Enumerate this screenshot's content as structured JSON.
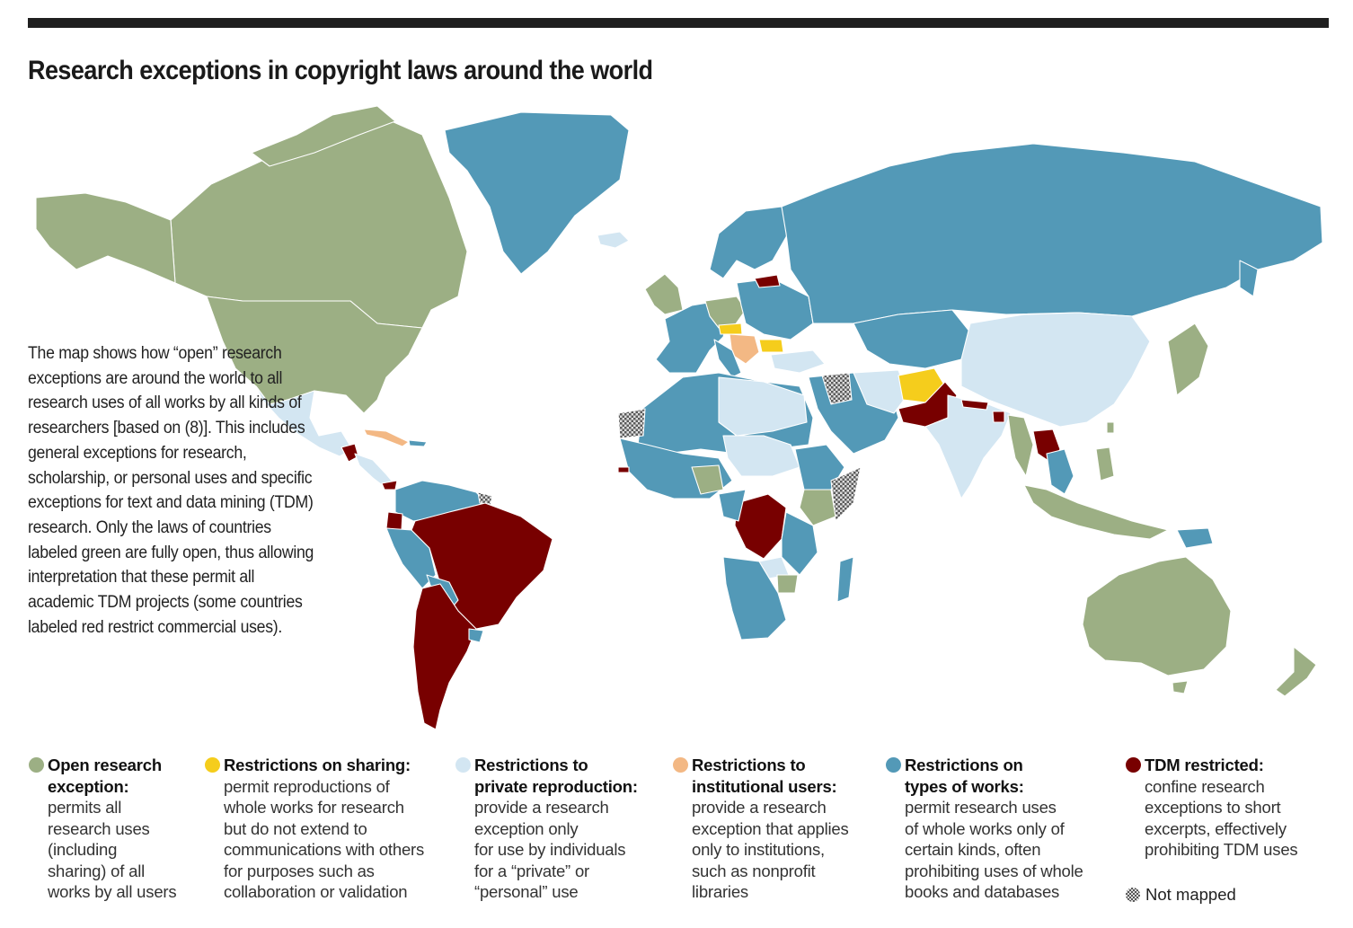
{
  "title": "Research exceptions in copyright laws around the world",
  "intro": "The map shows how “open” research exceptions are around the world to all research uses of all works by all kinds of researchers [based on (8)]. This includes general exceptions for research, scholarship, or personal uses and specific exceptions for text and data mining (TDM) research. Only the laws of countries labeled green are fully open, thus allowing interpretation that these permit all academic TDM projects (some countries labeled red restrict commercial uses).",
  "colors": {
    "open": "#9caf84",
    "sharing": "#f5cd1c",
    "private": "#d3e6f2",
    "institutional": "#f3b884",
    "types": "#5399b7",
    "tdm": "#780000",
    "notmapped": "#888888"
  },
  "legend": [
    {
      "key": "open",
      "heading": "Open research\nexception:",
      "desc": "permits all\nresearch uses\n(including\nsharing) of all\nworks by all users"
    },
    {
      "key": "sharing",
      "heading": "Restrictions on sharing:",
      "desc": "permit reproductions of\nwhole works for research\nbut do not extend to\ncommunications with others\nfor purposes such as\ncollaboration or validation"
    },
    {
      "key": "private",
      "heading": "Restrictions to\nprivate reproduction:",
      "desc": "provide a research\nexception only\nfor use by individuals\nfor a “private” or\n“personal” use"
    },
    {
      "key": "institutional",
      "heading": "Restrictions to\ninstitutional users:",
      "desc": "provide a research\nexception that applies\nonly to institutions,\nsuch as nonprofit\nlibraries"
    },
    {
      "key": "types",
      "heading": "Restrictions on\ntypes of works:",
      "desc": "permit research uses\nof whole works only of\ncertain kinds, often\nprohibiting uses of whole\nbooks and databases"
    },
    {
      "key": "tdm",
      "heading": "TDM restricted:",
      "desc": "confine research\nexceptions to short\nexcerpts, effectively\nprohibiting TDM uses"
    }
  ],
  "not_mapped_label": "Not mapped"
}
